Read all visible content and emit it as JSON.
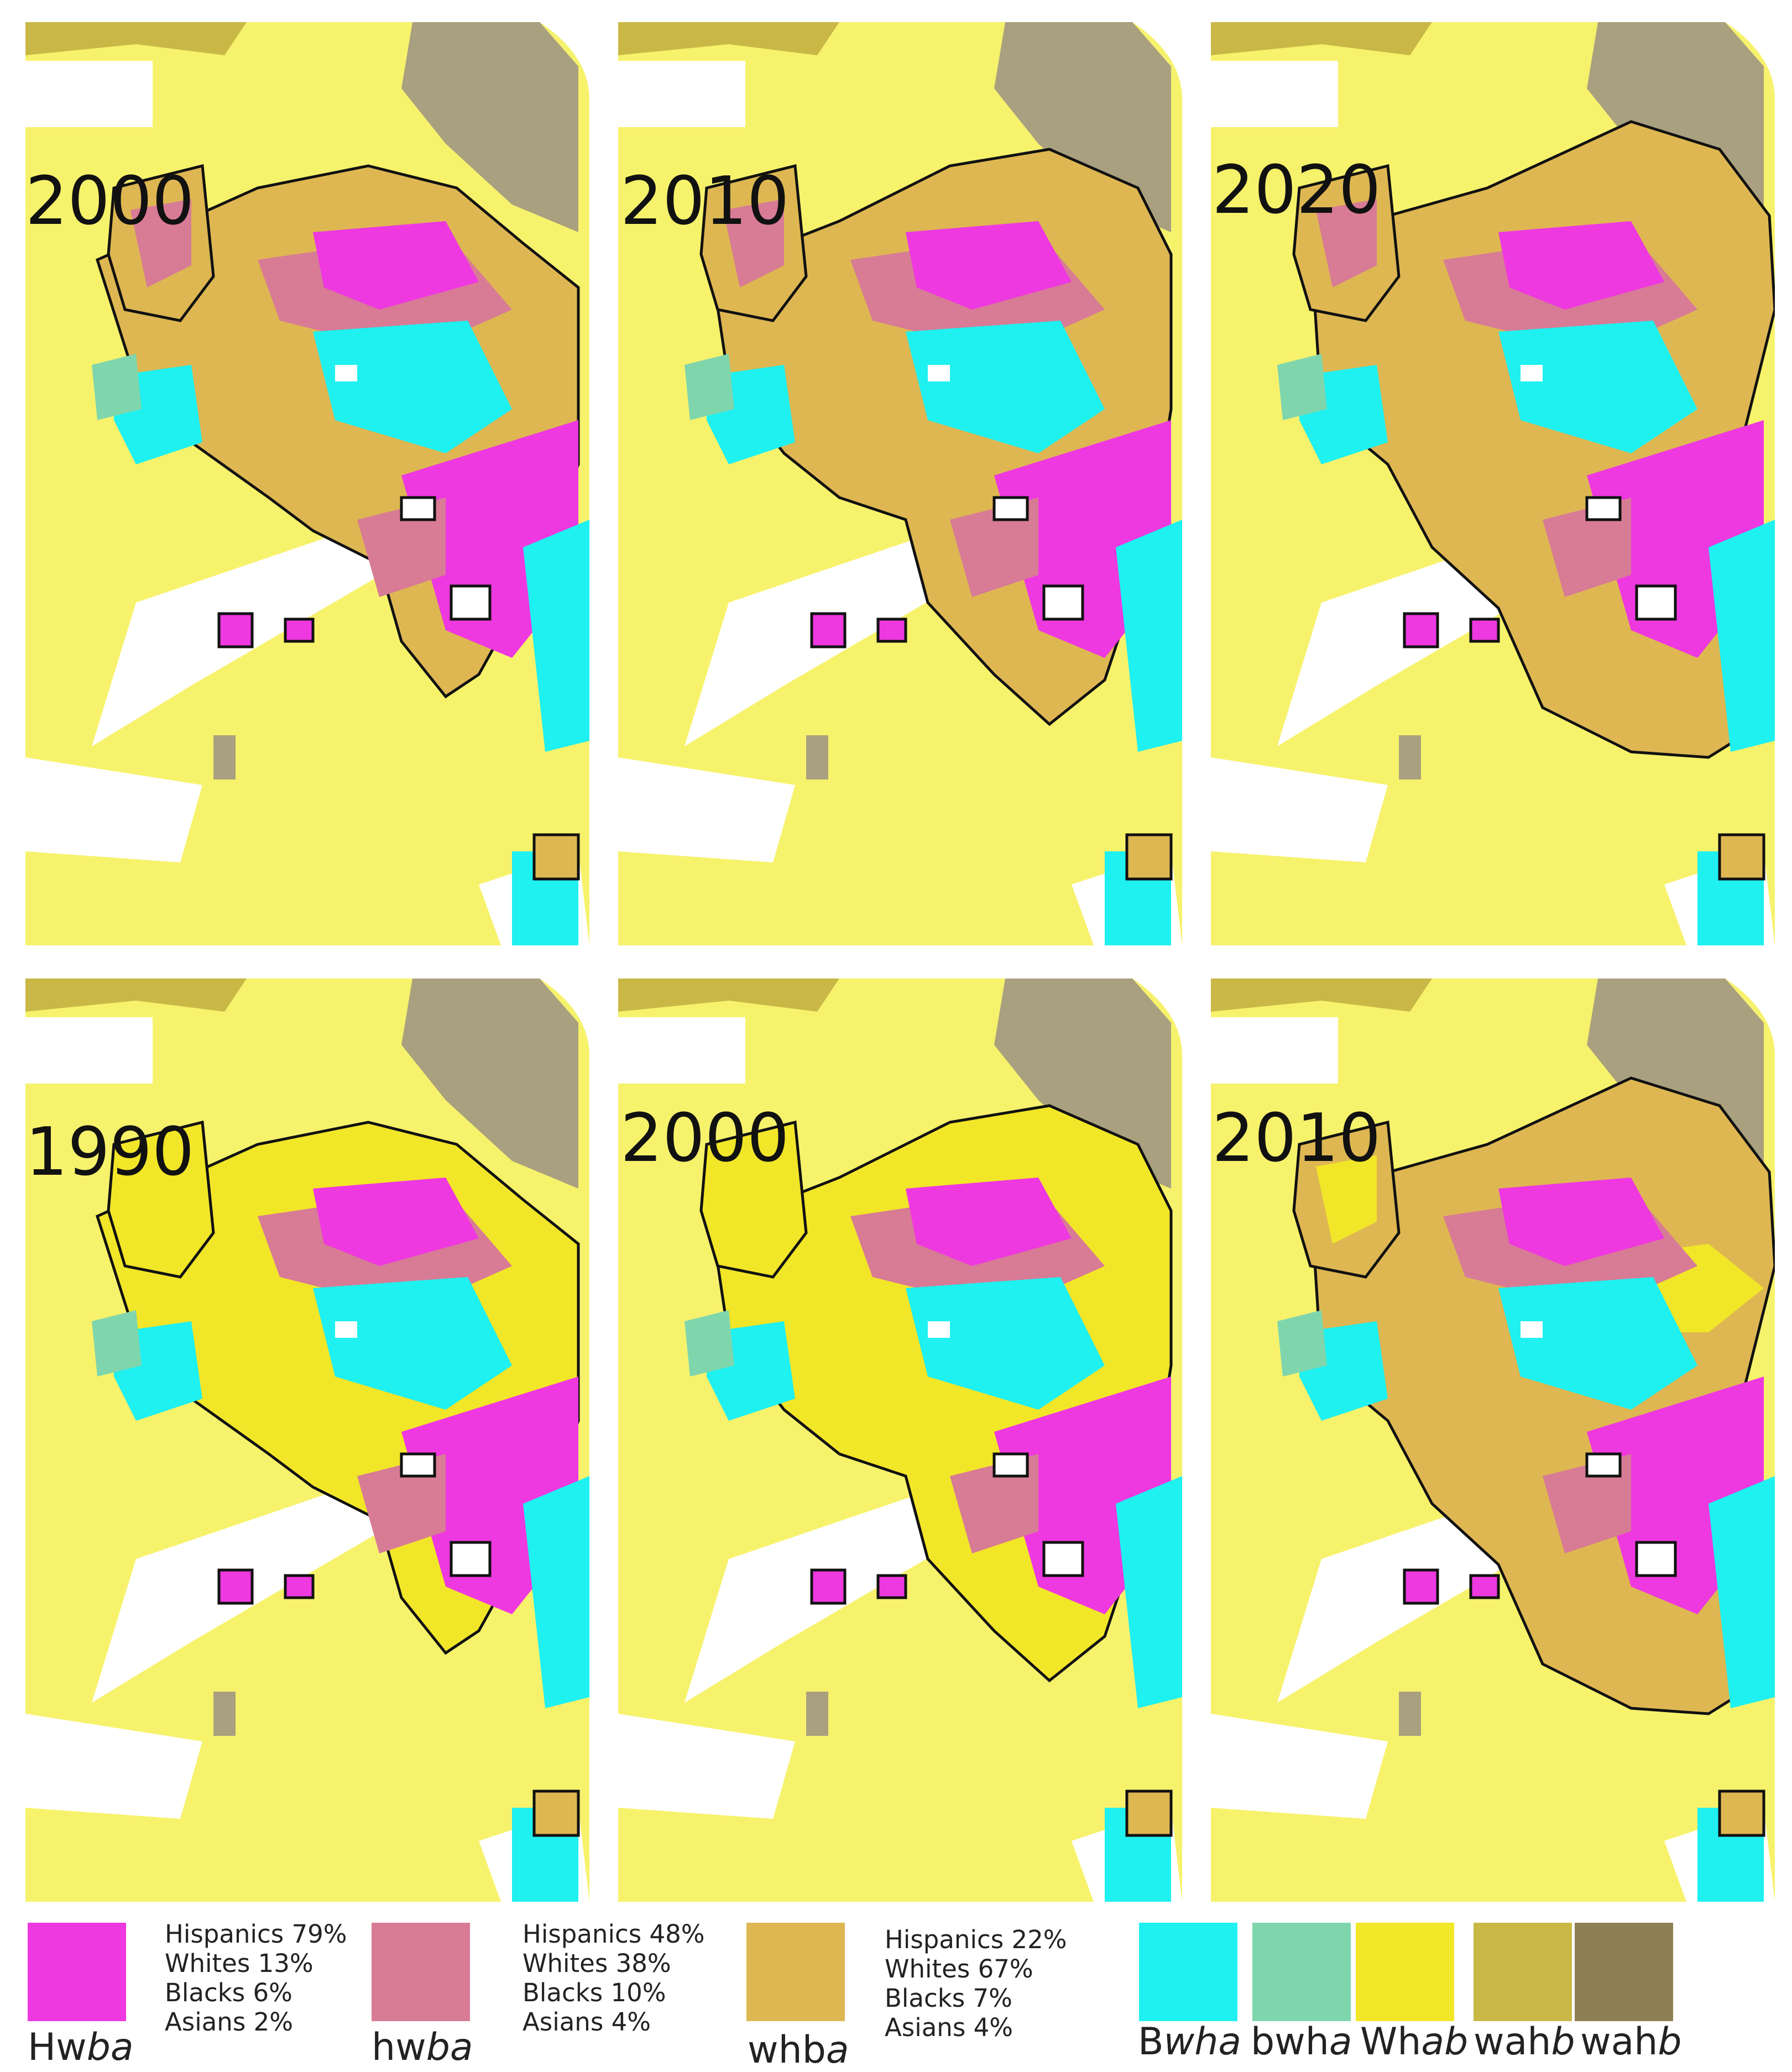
{
  "panels": [
    {
      "year": "2000"
    },
    {
      "year": "2010"
    },
    {
      "year": "2020"
    },
    {
      "year": "1990"
    },
    {
      "year": "2000"
    },
    {
      "year": "2010"
    }
  ],
  "legend": {
    "groups": [
      {
        "color": "#ee38e0",
        "code": {
          "main": "Hw",
          "italic": "ba"
        },
        "stats": [
          "Hispanics 79%",
          "Whites 13%",
          "Blacks 6%",
          "Asians 2%"
        ]
      },
      {
        "color": "#d87b95",
        "code": {
          "main": "hw",
          "italic": "ba"
        },
        "stats": [
          "Hispanics 48%",
          "Whites 38%",
          "Blacks 10%",
          "Asians 4%"
        ]
      },
      {
        "color": "#deb752",
        "code": {
          "main": "whb",
          "italic": "a"
        },
        "stats": [
          "Hispanics 22%",
          "Whites 67%",
          "Blacks 7%",
          "Asians 4%"
        ]
      }
    ],
    "extra": [
      {
        "color": "#1ff0f0",
        "code": {
          "main": "B",
          "italic": "wha"
        }
      },
      {
        "color": "#7fd6ad",
        "code": {
          "main": "bwh",
          "italic": "a"
        }
      },
      {
        "color": "#f2e628",
        "code": {
          "main": "Wh",
          "italic": "ab"
        }
      },
      {
        "color": "#c9b846",
        "code": {
          "main": "wah",
          "italic": "b"
        }
      },
      {
        "color": "#8e8055",
        "code": {
          "main": "wah",
          "italic": "b"
        }
      }
    ]
  },
  "colors": {
    "background_yellow": "#f7f26c",
    "outline": "#111111"
  }
}
